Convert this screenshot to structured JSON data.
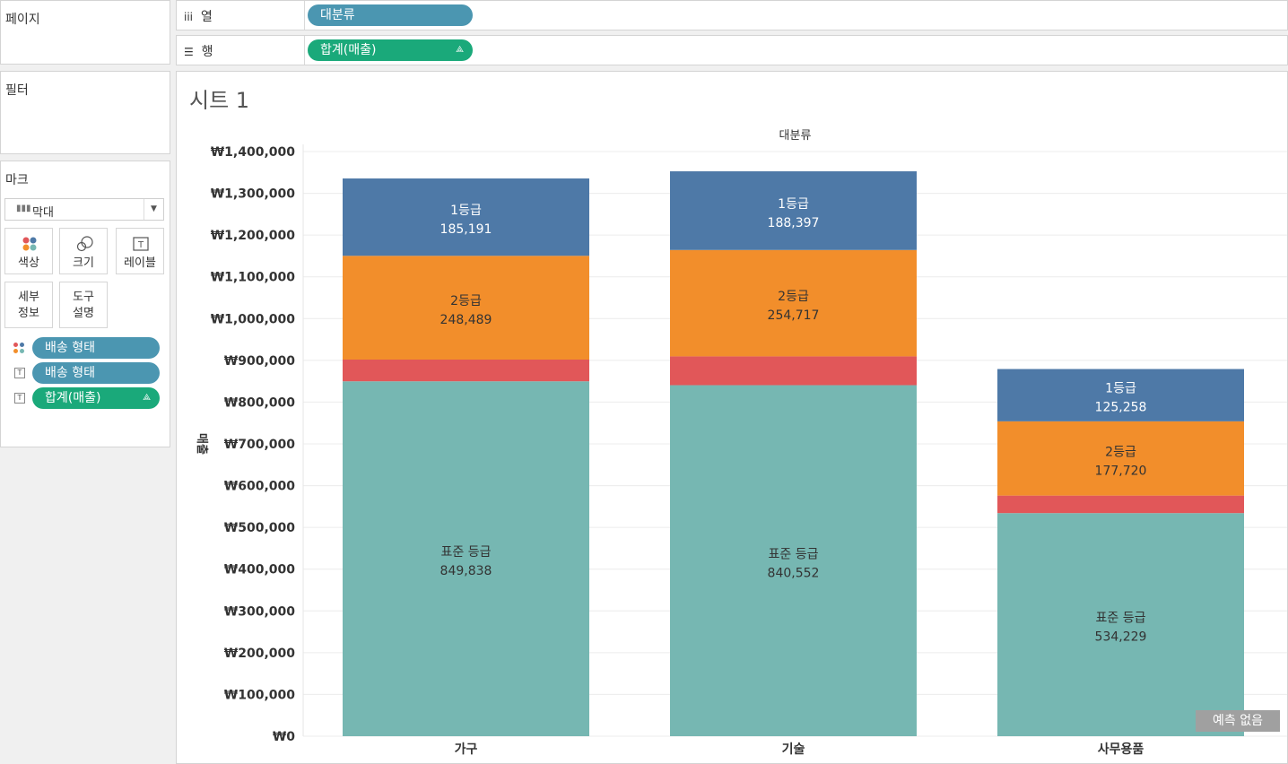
{
  "left_panel": {
    "pages_title": "페이지",
    "filters_title": "필터",
    "marks_title": "마크",
    "mark_type": "막대",
    "buttons": {
      "color": "색상",
      "size": "크기",
      "label": "레이블",
      "detail_1": "세부",
      "detail_2": "정보",
      "tooltip_1": "도구",
      "tooltip_2": "설명"
    },
    "mark_fields": [
      {
        "label": "배송 형태",
        "kind": "color"
      },
      {
        "label": "배송 형태",
        "kind": "label"
      },
      {
        "label": "합계(매출)",
        "kind": "label"
      }
    ]
  },
  "shelves": {
    "columns_label": "열",
    "columns_pill": "대분류",
    "rows_label": "행",
    "rows_pill": "합계(매출)"
  },
  "sheet": {
    "title": "시트 1",
    "badge": "예측 없음"
  },
  "colors": {
    "1등급": "#4e79a7",
    "2등급": "#f28e2b",
    "당일": "#e15759",
    "표준 등급": "#76b7b2",
    "pill_blue": "#4b96b1",
    "pill_green": "#1aa97a"
  },
  "chart_data": {
    "type": "bar",
    "stacked": true,
    "title": "대분류",
    "ylabel": "매출",
    "xlabel": "",
    "ylim": [
      0,
      1400000
    ],
    "yticks": [
      "₩1,400,000",
      "₩1,300,000",
      "₩1,200,000",
      "₩1,100,000",
      "₩1,000,000",
      "₩900,000",
      "₩800,000",
      "₩700,000",
      "₩600,000",
      "₩500,000",
      "₩400,000",
      "₩300,000",
      "₩200,000",
      "₩100,000",
      "₩0"
    ],
    "categories": [
      "가구",
      "기술",
      "사무용품"
    ],
    "series": [
      {
        "name": "표준 등급",
        "values": [
          849838,
          840552,
          534229
        ],
        "labels": [
          "849,838",
          "840,552",
          "534,229"
        ]
      },
      {
        "values": [
          52000,
          69000,
          42000
        ],
        "labels": [
          "",
          "",
          ""
        ]
      },
      {
        "name": "2등급",
        "values": [
          248489,
          254717,
          177720
        ],
        "labels": [
          "248,489",
          "254,717",
          "177,720"
        ]
      },
      {
        "name": "1등급",
        "values": [
          185191,
          188397,
          125258
        ],
        "labels": [
          "185,191",
          "188,397",
          "125,258"
        ]
      }
    ]
  }
}
